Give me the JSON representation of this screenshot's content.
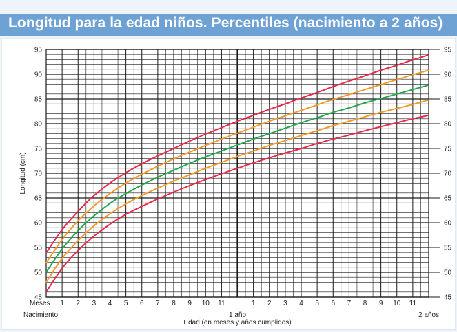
{
  "title": "Longitud para la edad niños. Percentiles (nacimiento a 2 años)",
  "chart_data": {
    "type": "line",
    "title": "Longitud para la edad niños. Percentiles (nacimiento a 2 años)",
    "xlabel": "Edad (en meses y años cumplidos)",
    "ylabel": "Longitud (cm)",
    "xlim": [
      0,
      24
    ],
    "ylim": [
      45,
      95
    ],
    "grid": true,
    "x_tick_labels": {
      "months_label": "Meses",
      "start_label": "Nacimiento",
      "year1_label": "1 año",
      "year2_label": "2 años",
      "month_numbers": [
        "1",
        "2",
        "3",
        "4",
        "5",
        "6",
        "7",
        "8",
        "9",
        "10",
        "11"
      ]
    },
    "y_ticks": [
      45,
      50,
      55,
      60,
      65,
      70,
      75,
      80,
      85,
      90,
      95
    ],
    "x": [
      0,
      1,
      2,
      3,
      4,
      5,
      6,
      7,
      8,
      9,
      10,
      11,
      12,
      13,
      14,
      15,
      16,
      17,
      18,
      19,
      20,
      21,
      22,
      23,
      24
    ],
    "series": [
      {
        "color": "#e8294a",
        "values": [
          46.0,
          50.8,
          54.4,
          57.3,
          59.7,
          61.7,
          63.3,
          64.8,
          66.2,
          67.5,
          68.7,
          69.9,
          71.0,
          72.1,
          73.1,
          74.1,
          75.0,
          76.0,
          76.9,
          77.7,
          78.6,
          79.4,
          80.2,
          81.0,
          81.7
        ]
      },
      {
        "color": "#f39a2b",
        "values": [
          48.0,
          52.8,
          56.4,
          59.4,
          61.8,
          63.8,
          65.5,
          67.0,
          68.4,
          69.7,
          71.0,
          72.2,
          73.4,
          74.5,
          75.6,
          76.6,
          77.6,
          78.6,
          79.6,
          80.5,
          81.4,
          82.3,
          83.1,
          83.9,
          84.8
        ]
      },
      {
        "color": "#21a84e",
        "values": [
          50.0,
          54.7,
          58.4,
          61.4,
          63.9,
          65.9,
          67.6,
          69.2,
          70.6,
          72.0,
          73.3,
          74.5,
          75.7,
          76.9,
          78.0,
          79.1,
          80.2,
          81.2,
          82.3,
          83.2,
          84.2,
          85.1,
          86.0,
          86.9,
          87.8
        ]
      },
      {
        "color": "#f39a2b",
        "values": [
          51.9,
          56.6,
          60.4,
          63.4,
          65.9,
          68.0,
          69.8,
          71.4,
          72.9,
          74.3,
          75.6,
          76.9,
          78.1,
          79.3,
          80.5,
          81.6,
          82.7,
          83.8,
          84.9,
          85.9,
          86.9,
          87.9,
          88.9,
          89.9,
          90.8
        ]
      },
      {
        "color": "#e8294a",
        "values": [
          53.9,
          58.6,
          62.3,
          65.5,
          68.0,
          70.1,
          71.9,
          73.5,
          75.0,
          76.5,
          77.9,
          79.2,
          80.5,
          81.7,
          82.9,
          84.0,
          85.2,
          86.3,
          87.5,
          88.6,
          89.7,
          90.8,
          91.8,
          92.9,
          93.9
        ]
      }
    ],
    "colors": {
      "grid": "#1a1a1a",
      "background": "#ffffff",
      "title_bar": "#6fa2d4"
    }
  }
}
